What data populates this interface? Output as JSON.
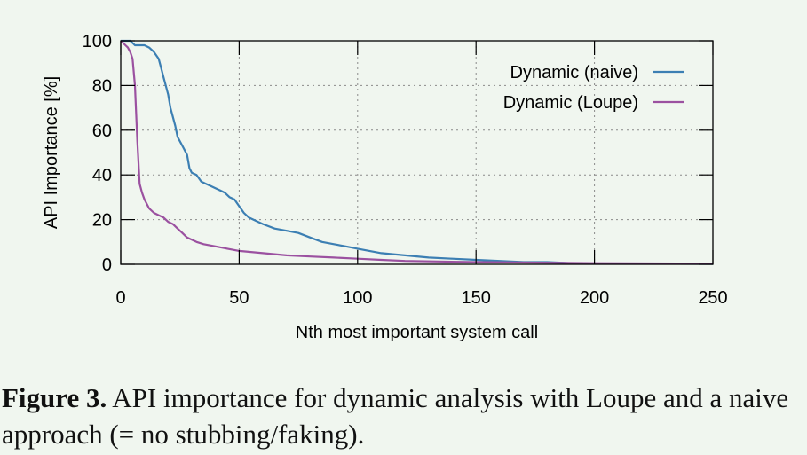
{
  "chart_data": {
    "type": "line",
    "xlabel": "Nth most important system call",
    "ylabel": "API Importance [%]",
    "xlim": [
      0,
      250
    ],
    "ylim": [
      0,
      100
    ],
    "xticks": [
      0,
      50,
      100,
      150,
      200,
      250
    ],
    "yticks": [
      0,
      20,
      40,
      60,
      80,
      100
    ],
    "grid": true,
    "legend_position": "top-right",
    "series": [
      {
        "name": "Dynamic (naive)",
        "color": "#3c7fb3",
        "x": [
          0,
          2,
          4,
          6,
          8,
          10,
          12,
          14,
          16,
          17,
          18,
          19,
          20,
          21,
          22,
          23,
          24,
          26,
          28,
          29,
          30,
          32,
          34,
          36,
          38,
          40,
          42,
          44,
          46,
          48,
          50,
          52,
          54,
          56,
          58,
          60,
          65,
          70,
          75,
          80,
          85,
          90,
          95,
          100,
          105,
          110,
          120,
          130,
          140,
          150,
          160,
          170,
          180,
          190,
          200,
          250
        ],
        "y": [
          100,
          100,
          100,
          98,
          98,
          98,
          97,
          95,
          92,
          88,
          84,
          80,
          76,
          70,
          66,
          62,
          57,
          53,
          49,
          43,
          41,
          40,
          37,
          36,
          35,
          34,
          33,
          32,
          30,
          29,
          26,
          23,
          21,
          20,
          19,
          18,
          16,
          15,
          14,
          12,
          10,
          9,
          8,
          7,
          6,
          5,
          4,
          3,
          2.5,
          2,
          1.5,
          1,
          1,
          0.5,
          0.3,
          0.2
        ]
      },
      {
        "name": "Dynamic (Loupe)",
        "color": "#9b51a0",
        "x": [
          0,
          1,
          2,
          3,
          4,
          5,
          6,
          7,
          8,
          9,
          10,
          12,
          14,
          16,
          18,
          20,
          22,
          24,
          26,
          28,
          30,
          32,
          35,
          40,
          45,
          50,
          60,
          70,
          80,
          90,
          100,
          110,
          120,
          150,
          200,
          250
        ],
        "y": [
          100,
          99,
          98,
          97,
          95,
          92,
          80,
          55,
          36,
          32,
          29,
          25,
          23,
          22,
          21,
          19,
          18,
          16,
          14,
          12,
          11,
          10,
          9,
          8,
          7,
          6,
          5,
          4,
          3.5,
          3,
          2.5,
          2,
          1.5,
          1,
          0.5,
          0.3
        ]
      }
    ]
  },
  "caption": {
    "label": "Figure 3.",
    "text": " API importance for dynamic analysis with Loupe and a naive approach (= no stubbing/faking)."
  }
}
